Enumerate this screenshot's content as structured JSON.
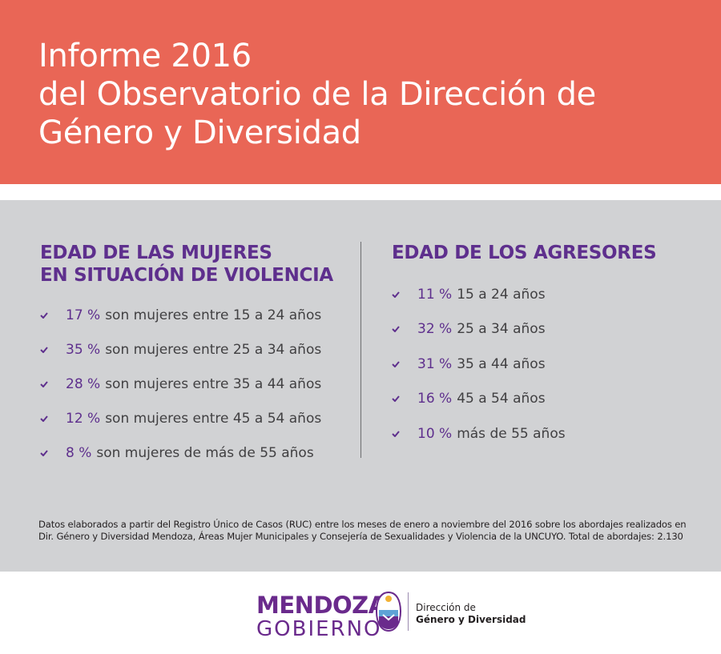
{
  "header": {
    "title_lines": [
      "Informe 2016",
      "del Observatorio de la Dirección de",
      "Género y Diversidad"
    ],
    "background_color": "#e96656"
  },
  "women": {
    "heading_lines": [
      "EDAD DE LAS MUJERES",
      "EN SITUACIÓN DE VIOLENCIA"
    ],
    "items": [
      {
        "pct": "17 %",
        "text": "son mujeres entre  15 a 24 años"
      },
      {
        "pct": "35 %",
        "text": "son mujeres entre  25 a 34 años"
      },
      {
        "pct": "28 %",
        "text": "son mujeres entre 35 a 44 años"
      },
      {
        "pct": "12 %",
        "text": "son mujeres entre  45  a 54 años"
      },
      {
        "pct": "8 % ",
        "text": " son mujeres de  más de 55 años"
      }
    ]
  },
  "aggressors": {
    "heading": "EDAD DE LOS AGRESORES",
    "items": [
      {
        "pct": "11 %",
        "text": " 15 a 24 años"
      },
      {
        "pct": "32 %",
        "text": " 25 a 34 años"
      },
      {
        "pct": "31 %",
        "text": " 35 a 44 años"
      },
      {
        "pct": "16 %",
        "text": "45 a 54 años"
      },
      {
        "pct": "10 %",
        "text": " más de 55 años"
      }
    ]
  },
  "note": "Datos elaborados a partir  del Registro Único de Casos (RUC) entre los meses de  enero a noviembre del  2016 sobre los abordajes realizados en Dir. Género y Diversidad Mendoza,  Áreas Mujer Municipales y  Consejería de Sexualidades y Violencia de la UNCUYO. Total de abordajes:  2.130",
  "footer": {
    "logo_top": "MENDOZA",
    "logo_bottom": "GOBIERNO",
    "dept_line1": "Dirección de",
    "dept_line2": "Género y Diversidad",
    "brand_color": "#6a2a8c"
  },
  "icons": {
    "check": "check-icon",
    "seal": "provincial-seal-icon"
  },
  "colors": {
    "accent": "#5e2f8d",
    "panel": "#d1d2d4",
    "text": "#414042"
  }
}
